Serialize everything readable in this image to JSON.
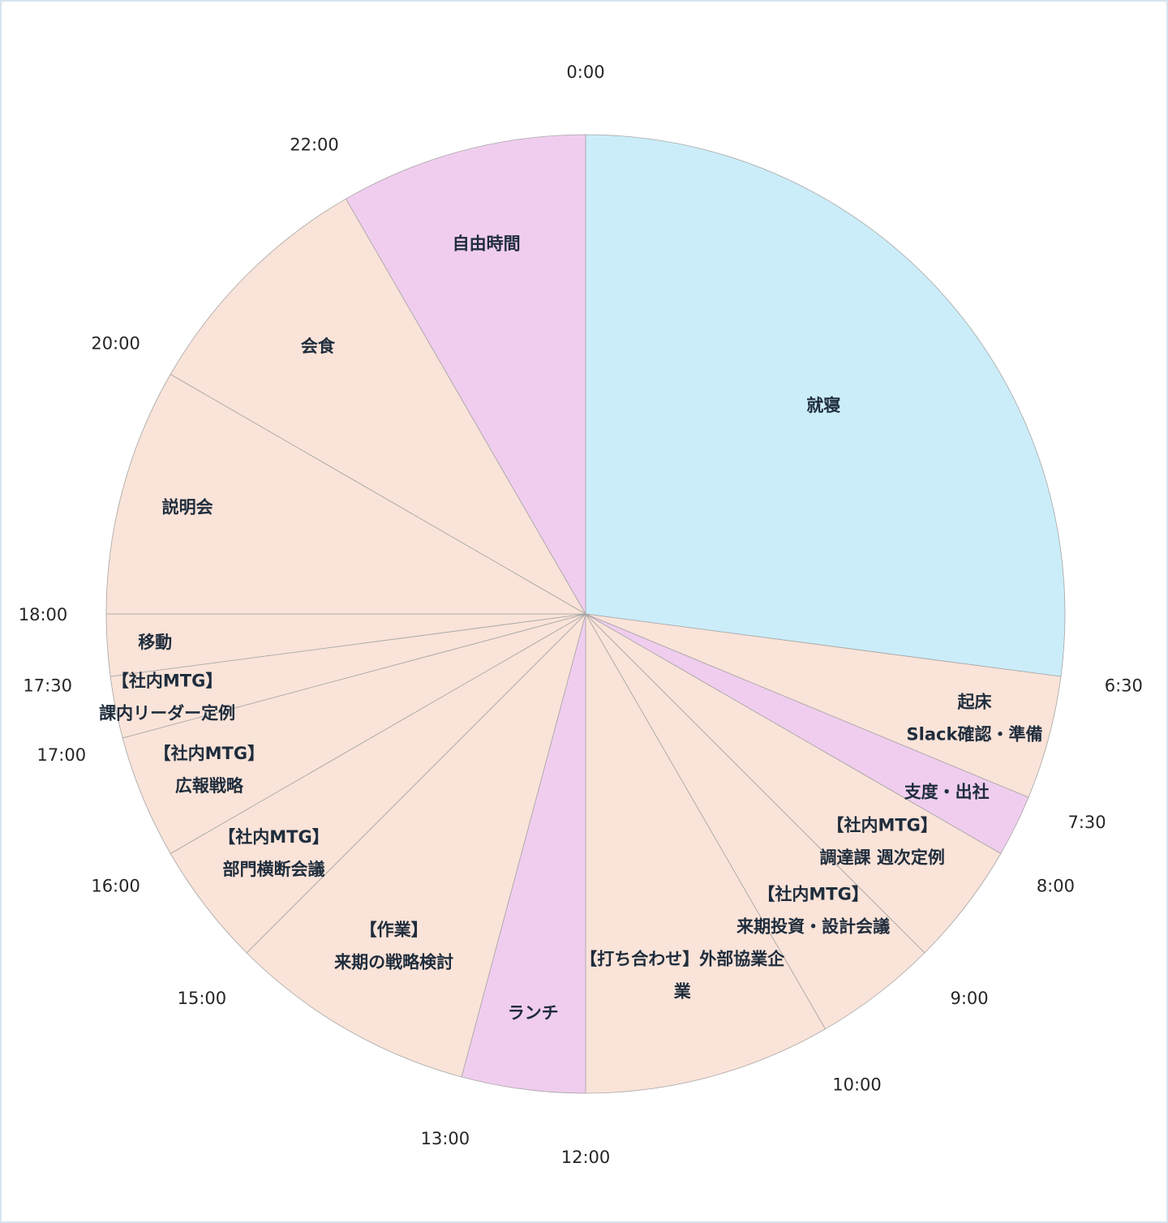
{
  "chart_data": {
    "type": "pie",
    "direction": "clockwise from top",
    "slices": [
      {
        "label_lines": [
          "就寝"
        ],
        "start": "0:00",
        "end": "6:30",
        "hours": 6.5,
        "color": "#cbedf9"
      },
      {
        "label_lines": [
          "起床",
          "Slack確認・準備"
        ],
        "start": "6:30",
        "end": "7:30",
        "hours": 1.0,
        "color": "#fae3d8"
      },
      {
        "label_lines": [
          "支度・出社"
        ],
        "start": "7:30",
        "end": "8:00",
        "hours": 0.5,
        "color": "#f0cdee"
      },
      {
        "label_lines": [
          "【社内MTG】",
          "調達課 週次定例"
        ],
        "start": "8:00",
        "end": "9:00",
        "hours": 1.0,
        "color": "#fae3d8"
      },
      {
        "label_lines": [
          "【社内MTG】",
          "来期投資・設計会議"
        ],
        "start": "9:00",
        "end": "10:00",
        "hours": 1.0,
        "color": "#fae3d8"
      },
      {
        "label_lines": [
          "【打ち合わせ】外部協業企",
          "業"
        ],
        "start": "10:00",
        "end": "12:00",
        "hours": 2.0,
        "color": "#fae3d8"
      },
      {
        "label_lines": [
          "ランチ"
        ],
        "start": "12:00",
        "end": "13:00",
        "hours": 1.0,
        "color": "#f0cdee"
      },
      {
        "label_lines": [
          "【作業】",
          "来期の戦略検討"
        ],
        "start": "13:00",
        "end": "15:00",
        "hours": 2.0,
        "color": "#fae3d8"
      },
      {
        "label_lines": [
          "【社内MTG】",
          "部門横断会議"
        ],
        "start": "15:00",
        "end": "16:00",
        "hours": 1.0,
        "color": "#fae3d8"
      },
      {
        "label_lines": [
          "【社内MTG】",
          "広報戦略"
        ],
        "start": "16:00",
        "end": "17:00",
        "hours": 1.0,
        "color": "#fae3d8"
      },
      {
        "label_lines": [
          "【社内MTG】",
          "課内リーダー定例"
        ],
        "start": "17:00",
        "end": "17:30",
        "hours": 0.5,
        "color": "#fae3d8"
      },
      {
        "label_lines": [
          "移動"
        ],
        "start": "17:30",
        "end": "18:00",
        "hours": 0.5,
        "color": "#fae3d8"
      },
      {
        "label_lines": [
          "説明会"
        ],
        "start": "18:00",
        "end": "20:00",
        "hours": 2.0,
        "color": "#fae3d8"
      },
      {
        "label_lines": [
          "会食"
        ],
        "start": "20:00",
        "end": "22:00",
        "hours": 2.0,
        "color": "#fae3d8"
      },
      {
        "label_lines": [
          "自由時間"
        ],
        "start": "22:00",
        "end": "0:00",
        "hours": 2.0,
        "color": "#f0cdee"
      }
    ],
    "time_labels": [
      "0:00",
      "6:30",
      "7:30",
      "8:00",
      "9:00",
      "10:00",
      "12:00",
      "13:00",
      "15:00",
      "16:00",
      "17:00",
      "17:30",
      "18:00",
      "20:00",
      "22:00"
    ],
    "border_color": "#a6a6a6"
  }
}
